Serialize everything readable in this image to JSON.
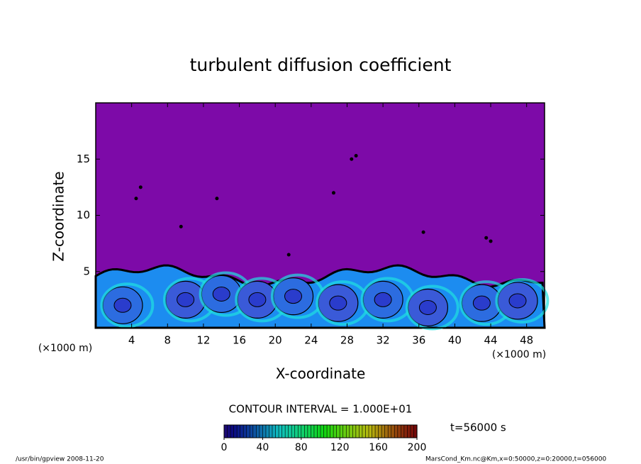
{
  "chart_data": {
    "type": "contour",
    "title": "turbulent diffusion coefficient",
    "x_label": "X-coordinate",
    "y_label": "Z-coordinate",
    "x_unit": "(×1000 m)",
    "y_unit": "(×1000 m)",
    "xlim": [
      0,
      50
    ],
    "xticks": [
      4,
      8,
      12,
      16,
      20,
      24,
      28,
      32,
      36,
      40,
      44,
      48
    ],
    "ylim": [
      0,
      20
    ],
    "yticks": [
      5,
      10,
      15
    ],
    "contour_interval": "CONTOUR INTERVAL = 1.000E+01",
    "time_label": "t=56000 s",
    "clim": [
      0,
      200
    ],
    "cticks": [
      0,
      40,
      80,
      120,
      160,
      200
    ],
    "footer_left": "/usr/bin/gpview  2008-11-20",
    "footer_right": "MarsCond_Km.nc@Km,x=0:50000,z=0:20000,t=056000"
  }
}
